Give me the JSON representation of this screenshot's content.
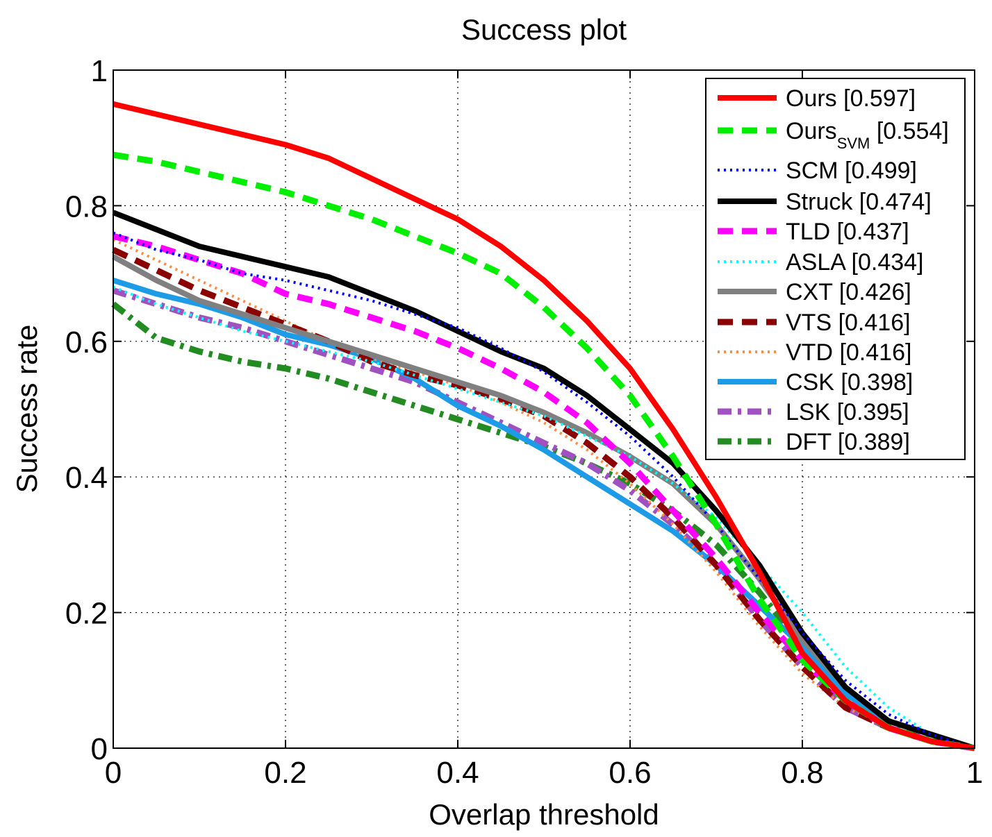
{
  "chart_data": {
    "type": "line",
    "title": "Success plot",
    "xlabel": "Overlap threshold",
    "ylabel": "Success rate",
    "xlim": [
      0,
      1
    ],
    "ylim": [
      0,
      1
    ],
    "xticks": [
      0,
      0.2,
      0.4,
      0.6,
      0.8,
      1
    ],
    "yticks": [
      0,
      0.2,
      0.4,
      0.6,
      0.8,
      1
    ],
    "xtick_labels": [
      "0",
      "0.2",
      "0.4",
      "0.6",
      "0.8",
      "1"
    ],
    "ytick_labels": [
      "0",
      "0.2",
      "0.4",
      "0.6",
      "0.8",
      "1"
    ],
    "grid": true,
    "legend_position": "top-right",
    "x": [
      0,
      0.05,
      0.1,
      0.15,
      0.2,
      0.25,
      0.3,
      0.35,
      0.4,
      0.45,
      0.5,
      0.55,
      0.6,
      0.65,
      0.7,
      0.75,
      0.8,
      0.85,
      0.9,
      0.95,
      1
    ],
    "series": [
      {
        "name": "Ours",
        "subscript": "",
        "score": "[0.597]",
        "color": "#ff0000",
        "dash": "solid",
        "values": [
          0.95,
          0.935,
          0.92,
          0.905,
          0.89,
          0.87,
          0.84,
          0.81,
          0.78,
          0.74,
          0.69,
          0.63,
          0.56,
          0.47,
          0.37,
          0.26,
          0.14,
          0.07,
          0.03,
          0.01,
          0
        ]
      },
      {
        "name": "Ours",
        "subscript": "SVM",
        "score": "[0.554]",
        "color": "#00ee00",
        "dash": "dash",
        "values": [
          0.875,
          0.865,
          0.85,
          0.835,
          0.82,
          0.8,
          0.78,
          0.755,
          0.73,
          0.7,
          0.65,
          0.59,
          0.52,
          0.43,
          0.33,
          0.22,
          0.13,
          0.07,
          0.03,
          0.01,
          0
        ]
      },
      {
        "name": "SCM",
        "subscript": "",
        "score": "[0.499]",
        "color": "#0000ff",
        "dash": "dot",
        "values": [
          0.76,
          0.735,
          0.72,
          0.7,
          0.69,
          0.675,
          0.66,
          0.64,
          0.62,
          0.59,
          0.555,
          0.51,
          0.46,
          0.4,
          0.33,
          0.25,
          0.17,
          0.1,
          0.05,
          0.02,
          0
        ]
      },
      {
        "name": "Struck",
        "subscript": "",
        "score": "[0.474]",
        "color": "#000000",
        "dash": "solid",
        "values": [
          0.79,
          0.765,
          0.74,
          0.725,
          0.71,
          0.695,
          0.67,
          0.645,
          0.615,
          0.585,
          0.56,
          0.52,
          0.47,
          0.42,
          0.35,
          0.27,
          0.17,
          0.09,
          0.04,
          0.02,
          0
        ]
      },
      {
        "name": "TLD",
        "subscript": "",
        "score": "[0.437]",
        "color": "#ff00ff",
        "dash": "dash",
        "values": [
          0.755,
          0.74,
          0.72,
          0.7,
          0.67,
          0.655,
          0.635,
          0.615,
          0.59,
          0.56,
          0.525,
          0.48,
          0.42,
          0.35,
          0.28,
          0.2,
          0.13,
          0.07,
          0.03,
          0.01,
          0
        ]
      },
      {
        "name": "ASLA",
        "subscript": "",
        "score": "[0.434]",
        "color": "#00ffff",
        "dash": "dot",
        "values": [
          0.68,
          0.655,
          0.635,
          0.615,
          0.6,
          0.585,
          0.57,
          0.55,
          0.53,
          0.51,
          0.49,
          0.46,
          0.43,
          0.39,
          0.34,
          0.27,
          0.2,
          0.12,
          0.06,
          0.02,
          0
        ]
      },
      {
        "name": "CXT",
        "subscript": "",
        "score": "[0.426]",
        "color": "#808080",
        "dash": "solid",
        "values": [
          0.725,
          0.69,
          0.66,
          0.64,
          0.62,
          0.6,
          0.58,
          0.56,
          0.54,
          0.52,
          0.495,
          0.465,
          0.43,
          0.39,
          0.33,
          0.25,
          0.16,
          0.09,
          0.04,
          0.02,
          0
        ]
      },
      {
        "name": "VTS",
        "subscript": "",
        "score": "[0.416]",
        "color": "#8b0000",
        "dash": "dash",
        "values": [
          0.735,
          0.705,
          0.675,
          0.65,
          0.625,
          0.6,
          0.57,
          0.55,
          0.535,
          0.515,
          0.49,
          0.45,
          0.4,
          0.34,
          0.27,
          0.19,
          0.12,
          0.06,
          0.03,
          0.01,
          0
        ]
      },
      {
        "name": "VTD",
        "subscript": "",
        "score": "[0.416]",
        "color": "#ff8c40",
        "dash": "dot",
        "values": [
          0.75,
          0.72,
          0.69,
          0.66,
          0.63,
          0.6,
          0.575,
          0.555,
          0.535,
          0.51,
          0.48,
          0.44,
          0.39,
          0.33,
          0.26,
          0.18,
          0.11,
          0.06,
          0.03,
          0.01,
          0
        ]
      },
      {
        "name": "CSK",
        "subscript": "",
        "score": "[0.398]",
        "color": "#1e9be6",
        "dash": "solid",
        "values": [
          0.69,
          0.67,
          0.655,
          0.635,
          0.61,
          0.595,
          0.575,
          0.545,
          0.505,
          0.475,
          0.44,
          0.4,
          0.36,
          0.32,
          0.27,
          0.21,
          0.15,
          0.08,
          0.04,
          0.02,
          0
        ]
      },
      {
        "name": "LSK",
        "subscript": "",
        "score": "[0.395]",
        "color": "#a050c0",
        "dash": "dashdot",
        "values": [
          0.675,
          0.655,
          0.635,
          0.62,
          0.6,
          0.58,
          0.56,
          0.54,
          0.51,
          0.48,
          0.45,
          0.42,
          0.38,
          0.33,
          0.27,
          0.19,
          0.12,
          0.06,
          0.03,
          0.01,
          0
        ]
      },
      {
        "name": "DFT",
        "subscript": "",
        "score": "[0.389]",
        "color": "#228b22",
        "dash": "dashdot",
        "values": [
          0.655,
          0.605,
          0.585,
          0.57,
          0.56,
          0.545,
          0.525,
          0.505,
          0.485,
          0.465,
          0.445,
          0.42,
          0.39,
          0.35,
          0.3,
          0.23,
          0.15,
          0.08,
          0.04,
          0.01,
          0
        ]
      }
    ]
  }
}
